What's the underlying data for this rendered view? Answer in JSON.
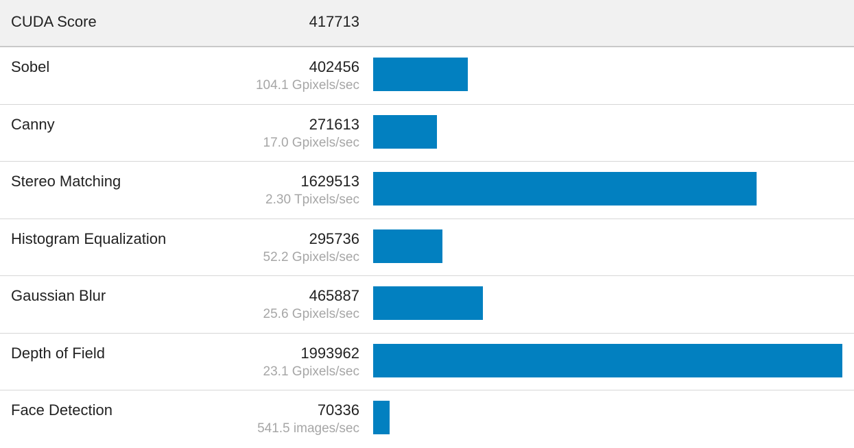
{
  "header": {
    "label": "CUDA Score",
    "score": "417713"
  },
  "chart_data": {
    "type": "bar",
    "orientation": "horizontal",
    "categories": [
      "Sobel",
      "Canny",
      "Stereo Matching",
      "Histogram Equalization",
      "Gaussian Blur",
      "Depth of Field",
      "Face Detection"
    ],
    "values": [
      402456,
      271613,
      1629513,
      295736,
      465887,
      1993962,
      70336
    ],
    "rates": [
      "104.1 Gpixels/sec",
      "17.0 Gpixels/sec",
      "2.30 Tpixels/sec",
      "52.2 Gpixels/sec",
      "25.6 Gpixels/sec",
      "23.1 Gpixels/sec",
      "541.5 images/sec"
    ],
    "bar_color": "#0280c0",
    "xlim": [
      0,
      1993962
    ],
    "grid": false
  }
}
